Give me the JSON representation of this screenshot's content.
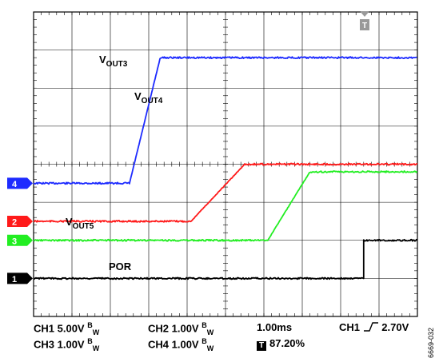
{
  "chart_data": {
    "type": "line",
    "title": "",
    "x_unit": "ms",
    "y_unit": "V",
    "xlim": [
      0,
      10
    ],
    "grid": true,
    "grid_divisions": {
      "x": 10,
      "y": 8
    },
    "series": [
      {
        "name": "VOUT3",
        "label_main": "V",
        "label_sub": "OUT3",
        "channel": "4",
        "color": "#1d2bff",
        "volts_per_div": 1.0,
        "baseline_div": -0.5,
        "x": [
          0,
          2.5,
          3.3,
          10
        ],
        "y": [
          0,
          0,
          3.3,
          3.3
        ]
      },
      {
        "name": "VOUT4",
        "label_main": "V",
        "label_sub": "OUT4",
        "channel": "2",
        "color": "#ff1a1a",
        "volts_per_div": 1.0,
        "baseline_div": -1.5,
        "x": [
          0,
          4.1,
          5.5,
          10
        ],
        "y": [
          0,
          0,
          1.5,
          1.5
        ]
      },
      {
        "name": "VOUT5",
        "label_main": "V",
        "label_sub": "OUT5",
        "channel": "3",
        "color": "#22ee22",
        "volts_per_div": 1.0,
        "baseline_div": -2.0,
        "x": [
          0,
          6.1,
          7.2,
          10
        ],
        "y": [
          0,
          0,
          1.8,
          1.8
        ]
      },
      {
        "name": "POR",
        "label_main": "POR",
        "label_sub": "",
        "channel": "1",
        "color": "#000000",
        "volts_per_div": 5.0,
        "baseline_div": -3.0,
        "x": [
          0,
          8.6,
          8.6,
          10
        ],
        "y": [
          0,
          0,
          5.0,
          5.0
        ]
      }
    ],
    "trigger_marker": "T"
  },
  "settings": {
    "ch1": "CH1  5.00V",
    "ch2": "CH2  1.00V",
    "ch3": "CH3  1.00V",
    "ch4": "CH4  1.00V",
    "bw_main": "B",
    "bw_sub": "W",
    "timebase": "1.00ms",
    "trigger_source": "CH1",
    "trigger_level": "2.70V",
    "trigger_position": "87.20%",
    "trigger_icon": "T"
  },
  "figure_id": "6669-032"
}
